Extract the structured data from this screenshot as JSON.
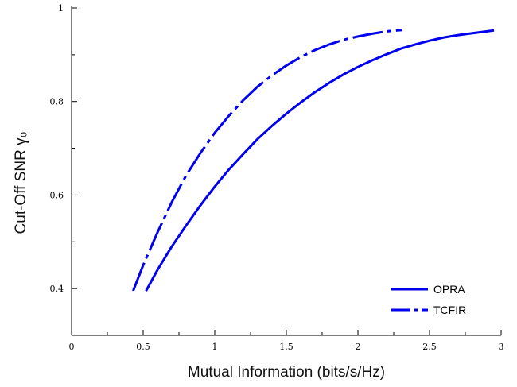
{
  "chart_data": {
    "type": "line",
    "title": "",
    "xlabel": "Mutual Information (bits/s/Hz)",
    "ylabel": "Cut-Off SNR γ₀",
    "xlim": [
      0,
      3
    ],
    "ylim": [
      0.3,
      1.0
    ],
    "x_ticks": [
      {
        "value": 0,
        "label": "0"
      },
      {
        "value": 0.5,
        "label": "0.5"
      },
      {
        "value": 1,
        "label": "1"
      },
      {
        "value": 1.5,
        "label": "1.5"
      },
      {
        "value": 2,
        "label": "2"
      },
      {
        "value": 2.5,
        "label": "2.5"
      },
      {
        "value": 3,
        "label": "3"
      }
    ],
    "y_ticks": [
      {
        "value": 0.4,
        "label": "0.4"
      },
      {
        "value": 0.6,
        "label": "0.6"
      },
      {
        "value": 0.8,
        "label": "0.8"
      },
      {
        "value": 1,
        "label": "1"
      }
    ],
    "grid": false,
    "legend_position": "bottom-right",
    "series": [
      {
        "name": "OPRA",
        "color": "#0000ee",
        "style": "solid",
        "points": [
          [
            0.52,
            0.395
          ],
          [
            0.6,
            0.44
          ],
          [
            0.7,
            0.49
          ],
          [
            0.8,
            0.535
          ],
          [
            0.9,
            0.578
          ],
          [
            1.0,
            0.618
          ],
          [
            1.1,
            0.655
          ],
          [
            1.2,
            0.688
          ],
          [
            1.3,
            0.72
          ],
          [
            1.4,
            0.748
          ],
          [
            1.5,
            0.774
          ],
          [
            1.6,
            0.798
          ],
          [
            1.7,
            0.82
          ],
          [
            1.8,
            0.84
          ],
          [
            1.9,
            0.858
          ],
          [
            2.0,
            0.874
          ],
          [
            2.1,
            0.888
          ],
          [
            2.2,
            0.901
          ],
          [
            2.3,
            0.913
          ],
          [
            2.4,
            0.922
          ],
          [
            2.5,
            0.93
          ],
          [
            2.6,
            0.937
          ],
          [
            2.7,
            0.942
          ],
          [
            2.8,
            0.946
          ],
          [
            2.95,
            0.952
          ]
        ]
      },
      {
        "name": "TCFIR",
        "color": "#0000ee",
        "style": "dash-dot",
        "points": [
          [
            0.43,
            0.395
          ],
          [
            0.5,
            0.45
          ],
          [
            0.6,
            0.52
          ],
          [
            0.7,
            0.585
          ],
          [
            0.8,
            0.642
          ],
          [
            0.9,
            0.69
          ],
          [
            1.0,
            0.733
          ],
          [
            1.1,
            0.77
          ],
          [
            1.2,
            0.803
          ],
          [
            1.3,
            0.832
          ],
          [
            1.4,
            0.856
          ],
          [
            1.5,
            0.877
          ],
          [
            1.6,
            0.895
          ],
          [
            1.7,
            0.91
          ],
          [
            1.8,
            0.922
          ],
          [
            1.9,
            0.932
          ],
          [
            2.0,
            0.939
          ],
          [
            2.1,
            0.945
          ],
          [
            2.2,
            0.95
          ],
          [
            2.31,
            0.953
          ]
        ]
      }
    ]
  }
}
